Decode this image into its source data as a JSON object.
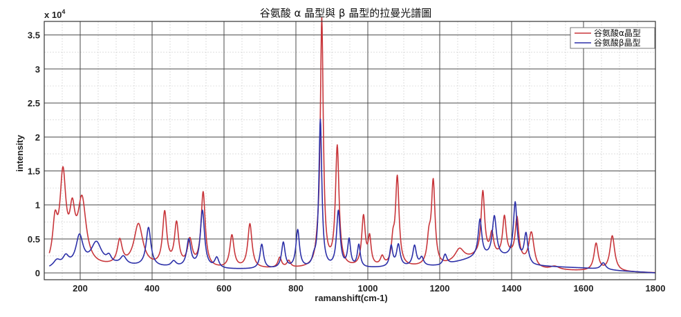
{
  "chart_data": {
    "type": "line",
    "title": "谷氨酸 α 晶型與 β 晶型的拉曼光譜圖",
    "xlabel": "ramanshift(cm-1)",
    "ylabel": "intensity",
    "y_exponent_label": "x 10",
    "y_exponent_power": "4",
    "xlim": [
      100,
      1800
    ],
    "ylim": [
      -0.1,
      3.7
    ],
    "x_ticks": [
      200,
      400,
      600,
      800,
      1000,
      1200,
      1400,
      1600,
      1800
    ],
    "x_tick_labels": [
      "200",
      "400",
      "600",
      "800",
      "1000",
      "1200",
      "1400",
      "1600",
      "1800"
    ],
    "y_ticks": [
      0,
      0.5,
      1,
      1.5,
      2,
      2.5,
      3,
      3.5
    ],
    "y_tick_labels": [
      "0",
      "0.5",
      "1",
      "1.5",
      "2",
      "2.5",
      "3",
      "3.5"
    ],
    "grid": true,
    "legend_position": "top-right",
    "series": [
      {
        "name": "谷氨酸α晶型",
        "color": "#c8353a",
        "baseline": [
          [
            100,
            0.05
          ],
          [
            300,
            0.08
          ],
          [
            600,
            0.05
          ],
          [
            900,
            0.06
          ],
          [
            1200,
            0.08
          ],
          [
            1300,
            0.22
          ],
          [
            1400,
            0.22
          ],
          [
            1470,
            0.04
          ],
          [
            1800,
            0.0
          ]
        ],
        "peaks": [
          [
            130,
            0.58,
            8
          ],
          [
            152,
            1.3,
            10
          ],
          [
            178,
            0.65,
            9
          ],
          [
            205,
            0.95,
            14
          ],
          [
            310,
            0.35,
            8
          ],
          [
            362,
            0.62,
            15
          ],
          [
            435,
            0.78,
            7
          ],
          [
            468,
            0.62,
            7
          ],
          [
            505,
            0.38,
            8
          ],
          [
            542,
            1.1,
            7
          ],
          [
            622,
            0.48,
            7
          ],
          [
            672,
            0.65,
            7
          ],
          [
            755,
            0.15,
            6
          ],
          [
            780,
            0.1,
            6
          ],
          [
            860,
            0.15,
            6
          ],
          [
            872,
            3.62,
            5
          ],
          [
            915,
            1.76,
            6
          ],
          [
            988,
            0.73,
            6
          ],
          [
            1005,
            0.4,
            5
          ],
          [
            1040,
            0.13,
            6
          ],
          [
            1070,
            0.3,
            5
          ],
          [
            1082,
            1.3,
            6
          ],
          [
            1170,
            0.35,
            6
          ],
          [
            1182,
            1.22,
            6
          ],
          [
            1255,
            0.18,
            15
          ],
          [
            1320,
            0.95,
            6
          ],
          [
            1345,
            0.32,
            6
          ],
          [
            1380,
            0.58,
            6
          ],
          [
            1415,
            0.6,
            6
          ],
          [
            1455,
            0.5,
            9
          ],
          [
            1520,
            0.05,
            15
          ],
          [
            1635,
            0.4,
            7
          ],
          [
            1680,
            0.52,
            8
          ]
        ]
      },
      {
        "name": "谷氨酸β晶型",
        "color": "#2b2fa8",
        "baseline": [
          [
            100,
            0.05
          ],
          [
            300,
            0.1
          ],
          [
            600,
            0.05
          ],
          [
            900,
            0.05
          ],
          [
            1200,
            0.1
          ],
          [
            1300,
            0.22
          ],
          [
            1400,
            0.22
          ],
          [
            1460,
            0.1
          ],
          [
            1600,
            0.07
          ],
          [
            1700,
            0.03
          ],
          [
            1800,
            0.0
          ]
        ],
        "peaks": [
          [
            135,
            0.1,
            12
          ],
          [
            160,
            0.14,
            10
          ],
          [
            198,
            0.44,
            12
          ],
          [
            245,
            0.34,
            18
          ],
          [
            280,
            0.1,
            8
          ],
          [
            320,
            0.12,
            10
          ],
          [
            390,
            0.57,
            8
          ],
          [
            460,
            0.08,
            8
          ],
          [
            502,
            0.4,
            7
          ],
          [
            540,
            0.84,
            7
          ],
          [
            580,
            0.15,
            7
          ],
          [
            705,
            0.36,
            6
          ],
          [
            765,
            0.38,
            6
          ],
          [
            805,
            0.56,
            6
          ],
          [
            850,
            0.1,
            6
          ],
          [
            868,
            2.18,
            5
          ],
          [
            918,
            0.83,
            6
          ],
          [
            948,
            0.4,
            5
          ],
          [
            975,
            0.33,
            5
          ],
          [
            1065,
            0.3,
            5
          ],
          [
            1085,
            0.32,
            6
          ],
          [
            1130,
            0.3,
            6
          ],
          [
            1150,
            0.12,
            6
          ],
          [
            1215,
            0.15,
            6
          ],
          [
            1312,
            0.55,
            6
          ],
          [
            1352,
            0.6,
            7
          ],
          [
            1410,
            0.82,
            6
          ],
          [
            1440,
            0.42,
            6
          ],
          [
            1655,
            0.1,
            8
          ]
        ]
      }
    ]
  }
}
